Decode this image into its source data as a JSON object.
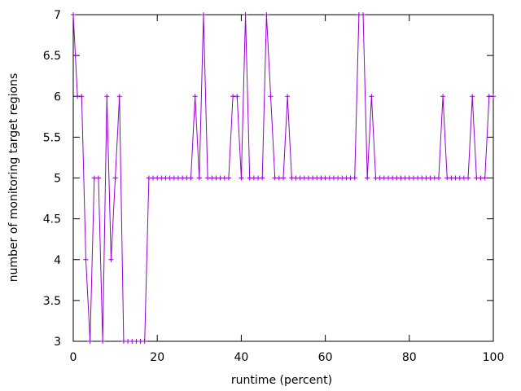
{
  "chart_data": {
    "type": "line",
    "title": "",
    "xlabel": "runtime (percent)",
    "ylabel": "number of monitoring target regions",
    "xlim": [
      0,
      100
    ],
    "ylim": [
      3,
      7
    ],
    "xticks": [
      0,
      20,
      40,
      60,
      80,
      100
    ],
    "yticks": [
      3,
      3.5,
      4,
      4.5,
      5,
      5.5,
      6,
      6.5,
      7
    ],
    "grid": false,
    "legend": "none",
    "marker": "plus",
    "colors": {
      "series": "#9400d3",
      "axis": "#000000"
    },
    "series": [
      {
        "x": [
          0,
          1,
          2,
          3,
          4,
          5,
          6,
          7,
          8,
          9,
          10,
          11,
          12,
          13,
          14,
          15,
          16,
          17,
          18,
          19,
          20,
          21,
          22,
          23,
          24,
          25,
          26,
          27,
          28,
          29,
          30,
          31,
          32,
          33,
          34,
          35,
          36,
          37,
          38,
          39,
          40,
          41,
          42,
          43,
          44,
          45,
          46,
          47,
          48,
          49,
          50,
          51,
          52,
          53,
          54,
          55,
          56,
          57,
          58,
          59,
          60,
          61,
          62,
          63,
          64,
          65,
          66,
          67,
          68,
          69,
          70,
          71,
          72,
          73,
          74,
          75,
          76,
          77,
          78,
          79,
          80,
          81,
          82,
          83,
          84,
          85,
          86,
          87,
          88,
          89,
          90,
          91,
          92,
          93,
          94,
          95,
          96,
          97,
          98,
          99,
          100
        ],
        "y": [
          7,
          6,
          6,
          4,
          3,
          5,
          5,
          3,
          6,
          4,
          5,
          6,
          3,
          3,
          3,
          3,
          3,
          3,
          5,
          5,
          5,
          5,
          5,
          5,
          5,
          5,
          5,
          5,
          5,
          6,
          5,
          7,
          5,
          5,
          5,
          5,
          5,
          5,
          6,
          6,
          5,
          7,
          5,
          5,
          5,
          5,
          7,
          6,
          5,
          5,
          5,
          6,
          5,
          5,
          5,
          5,
          5,
          5,
          5,
          5,
          5,
          5,
          5,
          5,
          5,
          5,
          5,
          5,
          7,
          7,
          5,
          6,
          5,
          5,
          5,
          5,
          5,
          5,
          5,
          5,
          5,
          5,
          5,
          5,
          5,
          5,
          5,
          5,
          6,
          5,
          5,
          5,
          5,
          5,
          5,
          6,
          5,
          5,
          5,
          6,
          6
        ]
      }
    ]
  }
}
